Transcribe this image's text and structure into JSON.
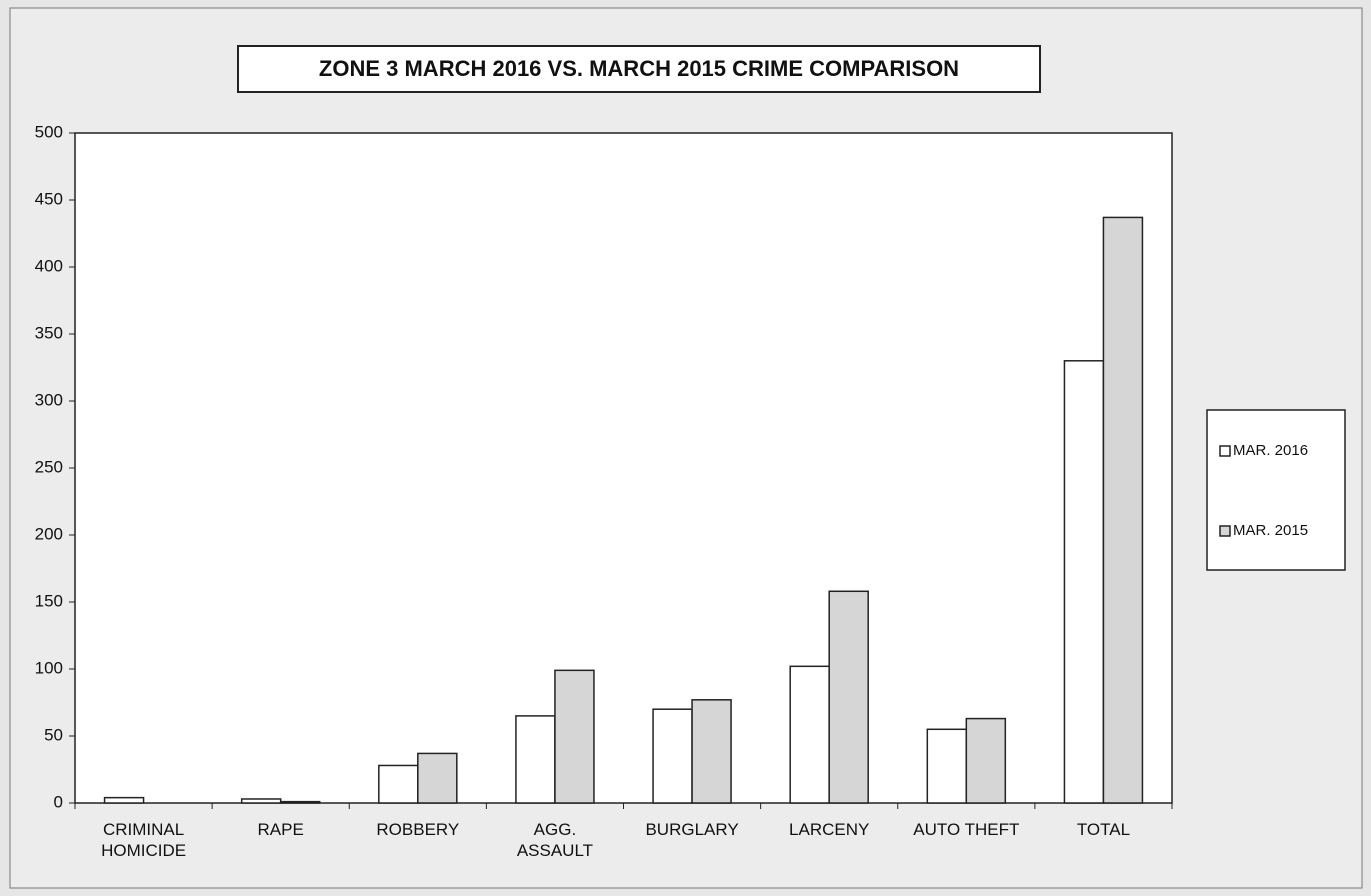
{
  "chart_data": {
    "type": "bar",
    "title": "ZONE 3  MARCH 2016 VS. MARCH 2015 CRIME COMPARISON",
    "categories": [
      "CRIMINAL HOMICIDE",
      "RAPE",
      "ROBBERY",
      "AGG. ASSAULT",
      "BURGLARY",
      "LARCENY",
      "AUTO THEFT",
      "TOTAL"
    ],
    "series": [
      {
        "name": "MAR. 2016",
        "color": "#ffffff",
        "values": [
          4,
          3,
          28,
          65,
          70,
          102,
          55,
          330
        ]
      },
      {
        "name": "MAR. 2015",
        "color": "#d6d6d6",
        "values": [
          0,
          1,
          37,
          99,
          77,
          158,
          63,
          437
        ]
      }
    ],
    "ylim": [
      0,
      500
    ],
    "yticks": [
      0,
      50,
      100,
      150,
      200,
      250,
      300,
      350,
      400,
      450,
      500
    ],
    "grid": false,
    "legend": "right"
  }
}
